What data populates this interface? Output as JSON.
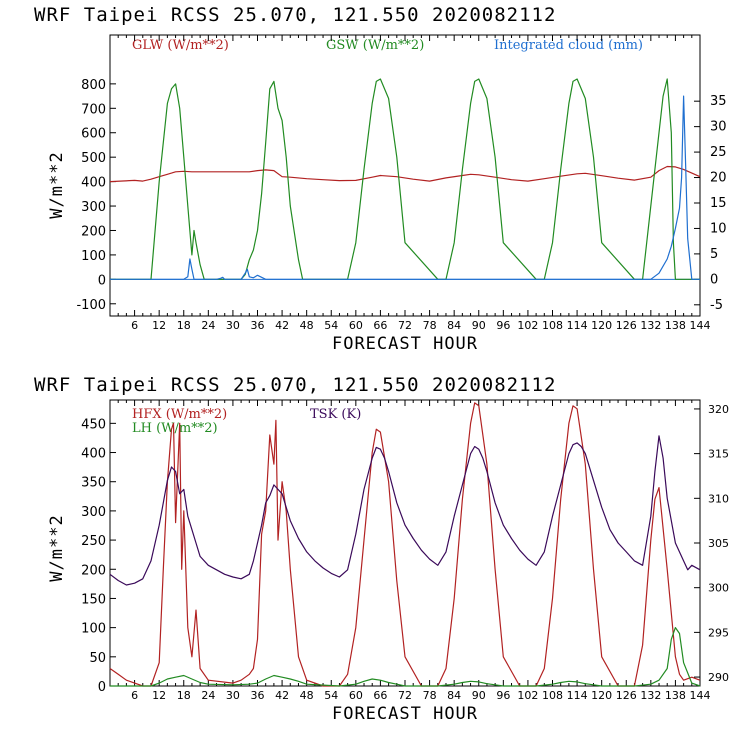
{
  "chart_data": [
    {
      "type": "line",
      "title": "WRF   Taipei RCSS   25.070, 121.550  2020082112",
      "xlabel": "FORECAST HOUR",
      "ylabel": "W/m**2",
      "xlim": [
        0,
        144
      ],
      "ylim": [
        -150,
        1000
      ],
      "y2lim": [
        -7.2,
        48
      ],
      "x_ticks": [
        6,
        12,
        18,
        24,
        30,
        36,
        42,
        48,
        54,
        60,
        66,
        72,
        78,
        84,
        90,
        96,
        102,
        108,
        114,
        120,
        126,
        132,
        138,
        144
      ],
      "y_ticks": [
        -100,
        0,
        100,
        200,
        300,
        400,
        500,
        600,
        700,
        800
      ],
      "y2_ticks": [
        -5,
        0,
        5,
        10,
        15,
        20,
        25,
        30,
        35
      ],
      "grid": false,
      "legend_position": "top",
      "series": [
        {
          "name": "GLW (W/m**2)",
          "axis": "left",
          "color": "#b22222",
          "x": [
            0,
            6,
            8,
            10,
            12,
            14,
            15,
            16,
            18,
            20,
            22,
            24,
            26,
            28,
            30,
            32,
            34,
            36,
            38,
            40,
            42,
            44,
            48,
            52,
            56,
            60,
            64,
            66,
            70,
            74,
            78,
            82,
            86,
            88,
            90,
            94,
            98,
            102,
            106,
            110,
            114,
            116,
            120,
            124,
            128,
            132,
            134,
            136,
            138,
            140,
            142,
            144
          ],
          "y": [
            400,
            405,
            402,
            410,
            420,
            430,
            435,
            440,
            442,
            440,
            440,
            440,
            440,
            440,
            440,
            440,
            440,
            445,
            448,
            445,
            420,
            418,
            412,
            408,
            404,
            405,
            418,
            425,
            420,
            410,
            402,
            415,
            425,
            430,
            428,
            418,
            408,
            402,
            412,
            422,
            432,
            434,
            424,
            414,
            406,
            418,
            445,
            462,
            460,
            450,
            435,
            420
          ]
        },
        {
          "name": "GSW (W/m**2)",
          "axis": "left",
          "color": "#228b22",
          "x": [
            0,
            8,
            10,
            12,
            14,
            15,
            16,
            17,
            18,
            19,
            20,
            20.5,
            21,
            22,
            23,
            24,
            30,
            32,
            33,
            34,
            35,
            36,
            37,
            38,
            39,
            40,
            41,
            42,
            43,
            44,
            46,
            47,
            48,
            56,
            58,
            60,
            62,
            64,
            65,
            66,
            68,
            70,
            72,
            80,
            82,
            84,
            86,
            88,
            89,
            90,
            92,
            94,
            96,
            104,
            106,
            108,
            110,
            112,
            113,
            114,
            116,
            118,
            120,
            128,
            130,
            132,
            134,
            135,
            136,
            137,
            137.5,
            138,
            144
          ],
          "y": [
            0,
            0,
            0,
            400,
            720,
            780,
            800,
            700,
            500,
            300,
            100,
            200,
            150,
            60,
            0,
            0,
            0,
            0,
            20,
            80,
            120,
            200,
            350,
            560,
            780,
            810,
            700,
            650,
            500,
            300,
            80,
            0,
            0,
            0,
            0,
            150,
            450,
            720,
            810,
            820,
            740,
            500,
            150,
            0,
            0,
            150,
            450,
            720,
            810,
            820,
            740,
            500,
            150,
            0,
            0,
            150,
            450,
            720,
            810,
            820,
            740,
            500,
            150,
            0,
            0,
            300,
            600,
            750,
            820,
            600,
            150,
            0,
            0
          ]
        },
        {
          "name": "Integrated cloud (mm)",
          "axis": "right",
          "color": "#1f6fd0",
          "x": [
            0,
            18,
            19,
            19.5,
            20,
            20.5,
            21,
            24,
            26,
            27,
            27.5,
            28,
            30,
            32,
            33,
            33.5,
            34,
            35,
            36,
            38,
            40,
            132,
            134,
            136,
            137,
            138,
            139,
            139.5,
            140,
            140.5,
            141,
            142,
            144
          ],
          "y": [
            0,
            0,
            0.5,
            4,
            2,
            0,
            0,
            0,
            0,
            0.2,
            0.4,
            0,
            0,
            0,
            1.2,
            2.0,
            0.5,
            0.3,
            0.8,
            0,
            0,
            0,
            1.2,
            4,
            6.5,
            10,
            14,
            20,
            36,
            22,
            8,
            0,
            0
          ]
        }
      ]
    },
    {
      "type": "line",
      "title": "WRF   Taipei RCSS   25.070, 121.550  2020082112",
      "xlabel": "FORECAST HOUR",
      "ylabel": "W/m**2",
      "xlim": [
        0,
        144
      ],
      "ylim": [
        0,
        490
      ],
      "y2lim": [
        289,
        321
      ],
      "x_ticks": [
        6,
        12,
        18,
        24,
        30,
        36,
        42,
        48,
        54,
        60,
        66,
        72,
        78,
        84,
        90,
        96,
        102,
        108,
        114,
        120,
        126,
        132,
        138,
        144
      ],
      "y_ticks": [
        0,
        50,
        100,
        150,
        200,
        250,
        300,
        350,
        400,
        450
      ],
      "y2_ticks": [
        290,
        295,
        300,
        305,
        310,
        315,
        320
      ],
      "grid": false,
      "legend_position": "top",
      "series": [
        {
          "name": "HFX (W/m**2)",
          "axis": "left",
          "color": "#b22222",
          "x": [
            0,
            2,
            4,
            6,
            8,
            10,
            12,
            13,
            14,
            15,
            15.5,
            16,
            17,
            17.5,
            18,
            19,
            20,
            21,
            22,
            24,
            30,
            32,
            34,
            35,
            36,
            37,
            38,
            39,
            40,
            40.5,
            41,
            42,
            43,
            44,
            46,
            48,
            52,
            56,
            58,
            60,
            62,
            64,
            65,
            66,
            68,
            70,
            72,
            76,
            80,
            82,
            84,
            86,
            88,
            89,
            90,
            92,
            94,
            96,
            100,
            104,
            106,
            108,
            110,
            112,
            113,
            114,
            116,
            118,
            120,
            124,
            128,
            130,
            132,
            133,
            134,
            136,
            138,
            139,
            140,
            142,
            144
          ],
          "y": [
            30,
            20,
            10,
            5,
            0,
            0,
            40,
            200,
            350,
            440,
            450,
            280,
            450,
            200,
            300,
            100,
            50,
            130,
            30,
            10,
            5,
            10,
            20,
            30,
            80,
            260,
            300,
            430,
            380,
            455,
            250,
            350,
            300,
            200,
            50,
            10,
            0,
            0,
            20,
            100,
            250,
            400,
            440,
            435,
            350,
            180,
            50,
            0,
            0,
            30,
            150,
            320,
            450,
            485,
            480,
            380,
            200,
            50,
            0,
            0,
            30,
            150,
            320,
            450,
            480,
            475,
            380,
            200,
            50,
            0,
            0,
            70,
            250,
            320,
            340,
            200,
            50,
            20,
            10,
            15,
            10
          ]
        },
        {
          "name": "LH  (W/m**2)",
          "axis": "left",
          "color": "#228b22",
          "x": [
            0,
            10,
            12,
            14,
            16,
            18,
            20,
            22,
            24,
            30,
            34,
            36,
            38,
            40,
            42,
            44,
            46,
            48,
            56,
            60,
            62,
            64,
            66,
            68,
            70,
            72,
            80,
            84,
            86,
            88,
            90,
            92,
            94,
            96,
            104,
            108,
            110,
            112,
            114,
            116,
            118,
            120,
            128,
            132,
            134,
            136,
            137,
            138,
            139,
            140,
            142,
            144
          ],
          "y": [
            0,
            0,
            5,
            12,
            15,
            18,
            12,
            6,
            3,
            2,
            3,
            5,
            12,
            18,
            15,
            12,
            8,
            3,
            0,
            3,
            8,
            12,
            10,
            6,
            3,
            0,
            0,
            3,
            6,
            8,
            7,
            4,
            2,
            0,
            0,
            3,
            6,
            8,
            7,
            4,
            2,
            0,
            0,
            3,
            10,
            30,
            80,
            100,
            90,
            40,
            5,
            0
          ]
        },
        {
          "name": "TSK (K)",
          "axis": "right",
          "color": "#3a0a5a",
          "x": [
            0,
            2,
            4,
            6,
            8,
            10,
            12,
            14,
            15,
            16,
            17,
            18,
            19,
            20,
            21,
            22,
            24,
            26,
            28,
            30,
            32,
            34,
            35,
            36,
            37,
            38,
            39,
            40,
            41,
            42,
            43,
            44,
            46,
            48,
            50,
            52,
            54,
            56,
            58,
            60,
            62,
            64,
            65,
            66,
            67,
            68,
            70,
            72,
            74,
            76,
            78,
            80,
            82,
            84,
            86,
            88,
            89,
            90,
            91,
            92,
            94,
            96,
            98,
            100,
            102,
            104,
            106,
            108,
            110,
            112,
            113,
            114,
            115,
            116,
            118,
            120,
            122,
            124,
            126,
            128,
            130,
            132,
            133,
            134,
            135,
            136,
            138,
            140,
            141,
            142,
            144
          ],
          "y": [
            301.5,
            300.8,
            300.3,
            300.5,
            301,
            303,
            307,
            312,
            313.5,
            313,
            310.5,
            311,
            308,
            306.5,
            305,
            303.5,
            302.5,
            302,
            301.5,
            301.2,
            301,
            301.5,
            303,
            305,
            307,
            309.5,
            310.3,
            311.5,
            311,
            310.5,
            309,
            307.5,
            305.5,
            304,
            303,
            302.2,
            301.6,
            301.2,
            302,
            306,
            311,
            314.5,
            315.7,
            315.5,
            314.5,
            313,
            309.5,
            307,
            305.5,
            304.2,
            303.2,
            302.5,
            304,
            308,
            311.5,
            315,
            315.8,
            315.5,
            314.5,
            313,
            309.5,
            307,
            305.5,
            304.2,
            303.2,
            302.5,
            304,
            308,
            311.5,
            315,
            316,
            316.2,
            315.8,
            315,
            312,
            309,
            306.5,
            305,
            304,
            303,
            302.5,
            308,
            313,
            317,
            314.5,
            310,
            305,
            303,
            302,
            302.5,
            302
          ]
        }
      ]
    }
  ]
}
